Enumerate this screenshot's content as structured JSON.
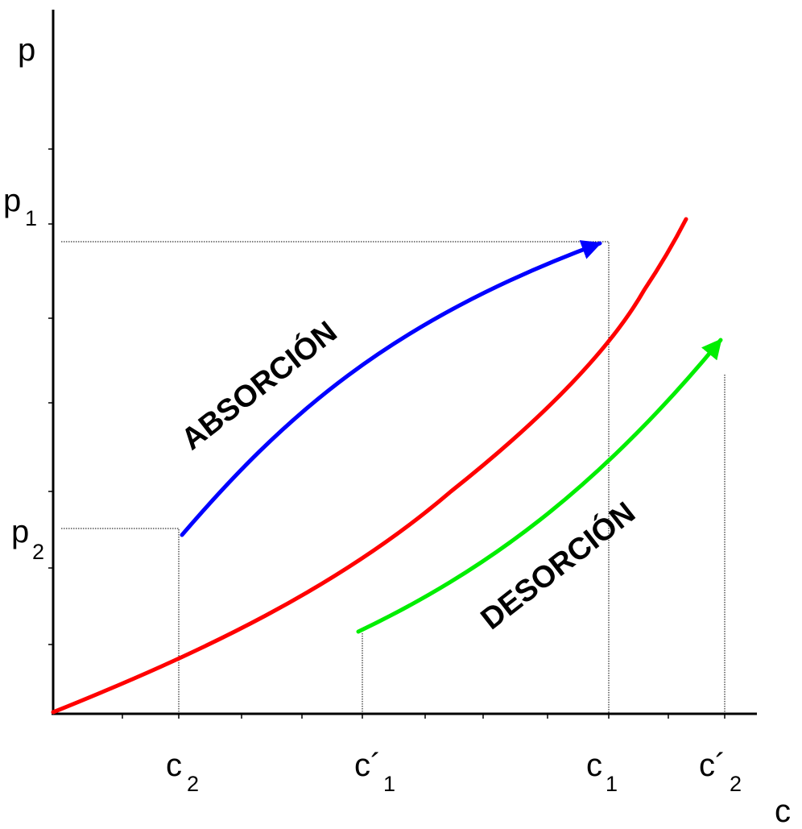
{
  "axes": {
    "y_label": "p",
    "x_label": "c"
  },
  "y_ticks": [
    {
      "main": "p",
      "sub": "1"
    },
    {
      "main": "p",
      "sub": "2"
    }
  ],
  "x_ticks": [
    {
      "main": "c",
      "sub": "2"
    },
    {
      "main": "c´",
      "sub": "1"
    },
    {
      "main": "c",
      "sub": "1"
    },
    {
      "main": "c´",
      "sub": "2"
    }
  ],
  "annotations": {
    "absorption": "ABSORCIÓN",
    "desorption": "DESORCIÓN"
  },
  "colors": {
    "equilibrium_curve": "#ff0000",
    "absorption_arrow": "#0000ff",
    "desorption_arrow": "#00ee00",
    "axes": "#000000"
  }
}
